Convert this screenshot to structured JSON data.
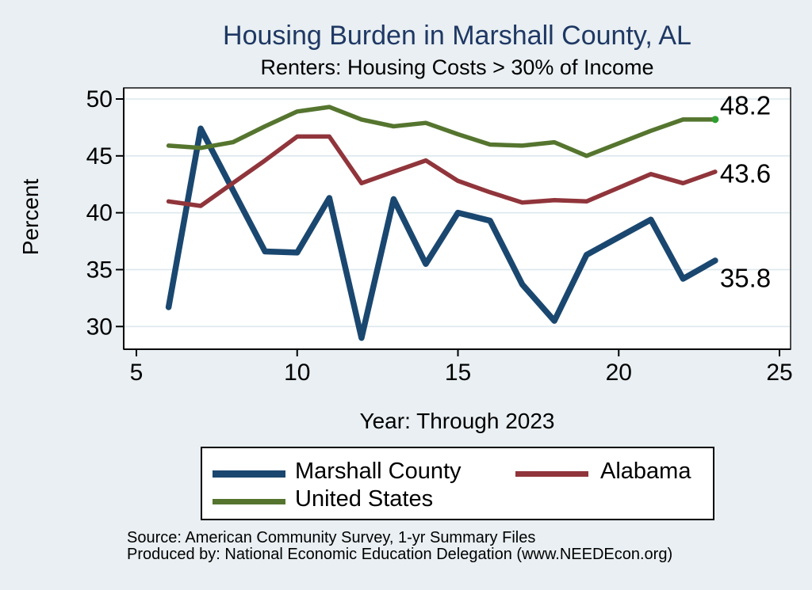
{
  "chart_data": {
    "type": "line",
    "title": "Housing Burden in Marshall County, AL",
    "subtitle": "Renters: Housing Costs > 30% of Income",
    "xlabel": "Year: Through 2023",
    "ylabel": "Percent",
    "xlim": [
      5,
      25
    ],
    "ylim": [
      30,
      50
    ],
    "x_ticks": [
      5,
      10,
      15,
      20,
      25
    ],
    "y_ticks": [
      30,
      35,
      40,
      45,
      50
    ],
    "grid": "horizontal-only",
    "legend_position": "bottom",
    "x": [
      6,
      7,
      8,
      9,
      10,
      11,
      12,
      13,
      14,
      15,
      16,
      17,
      18,
      19,
      21,
      22,
      23
    ],
    "series": [
      {
        "name": "Marshall County",
        "color": "#1a476f",
        "line_width": 7.5,
        "values": [
          31.7,
          47.4,
          42.0,
          36.6,
          36.5,
          41.3,
          29.0,
          41.2,
          35.5,
          40.0,
          39.3,
          33.7,
          30.5,
          36.3,
          39.4,
          34.2,
          35.8
        ],
        "end_label": "35.8",
        "end_marker": false
      },
      {
        "name": "Alabama",
        "color": "#90353b",
        "line_width": 5.5,
        "values": [
          41.0,
          40.6,
          42.6,
          44.6,
          46.7,
          46.7,
          42.6,
          43.6,
          44.6,
          42.8,
          41.8,
          40.9,
          41.1,
          41.0,
          43.4,
          42.6,
          43.6
        ],
        "end_label": "43.6",
        "end_marker": false
      },
      {
        "name": "United States",
        "color": "#55752f",
        "line_width": 5.5,
        "values": [
          45.9,
          45.7,
          46.2,
          47.6,
          48.9,
          49.3,
          48.2,
          47.6,
          47.9,
          46.9,
          46.0,
          45.9,
          46.2,
          45.0,
          47.2,
          48.2,
          48.2
        ],
        "end_label": "48.2",
        "end_marker": true
      }
    ],
    "end_marker_color": "#2e9e2e"
  },
  "colors": {
    "page_background": "#e9eff2",
    "plot_background": "#ffffff",
    "gridline": "#dce8ee",
    "axis": "#000000",
    "title": "#1f3864",
    "text": "#000000"
  },
  "footer": {
    "source_line": "Source: American Community Survey, 1-yr Summary Files",
    "produced_line": "Produced by: National Economic Education Delegation (www.NEEDEcon.org)"
  }
}
